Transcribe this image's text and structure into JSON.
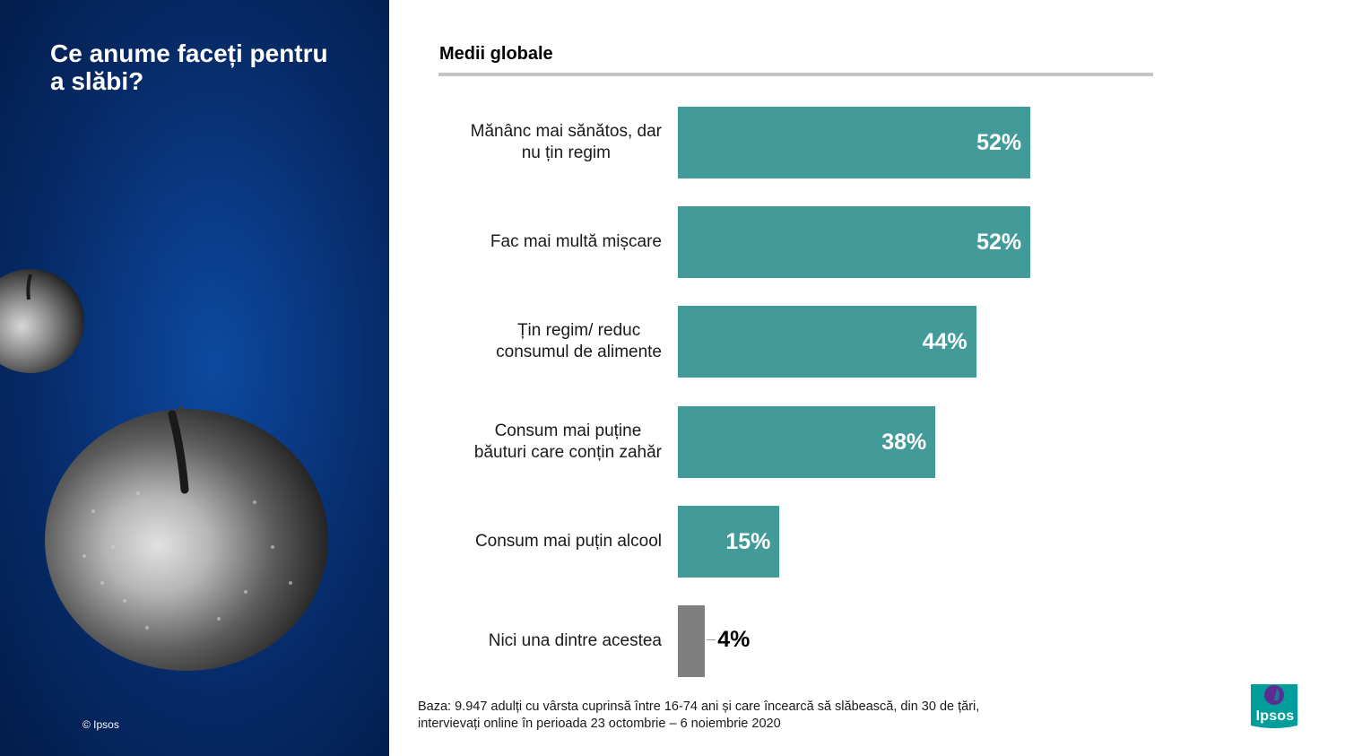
{
  "left_panel": {
    "title_lines": [
      "Ce anume faceți pentru",
      "a slăbi?"
    ],
    "copyright": "© Ipsos"
  },
  "section": {
    "title": "Medii globale"
  },
  "chart_data": {
    "type": "bar",
    "orientation": "horizontal",
    "categories": [
      [
        "Mănânc mai sănătos, dar",
        "nu țin regim"
      ],
      [
        "Fac mai multă mișcare"
      ],
      [
        "Țin regim/ reduc",
        "consumul de alimente"
      ],
      [
        "Consum mai puține",
        "băuturi care conțin zahăr"
      ],
      [
        "Consum mai puțin alcool"
      ],
      [
        "Nici una dintre acestea"
      ]
    ],
    "values": [
      52,
      52,
      44,
      38,
      15,
      4
    ],
    "value_labels": [
      "52%",
      "52%",
      "44%",
      "38%",
      "15%",
      "4%"
    ],
    "value_unit": "%",
    "colors": [
      "#429b98",
      "#429b98",
      "#429b98",
      "#429b98",
      "#429b98",
      "#7f7f7f"
    ],
    "grid": false,
    "legend": "none"
  },
  "footnote": {
    "lines": [
      "Baza: 9.947 adulți cu vârsta cuprinsă între 16-74 ani și care încearcă să slăbească, din 30 de țări,",
      "intervievați online în perioada 23 octombrie – 6 noiembrie 2020"
    ]
  },
  "logo": {
    "text": "Ipsos",
    "color": "#009d9a",
    "accent": "#5b2d90"
  }
}
